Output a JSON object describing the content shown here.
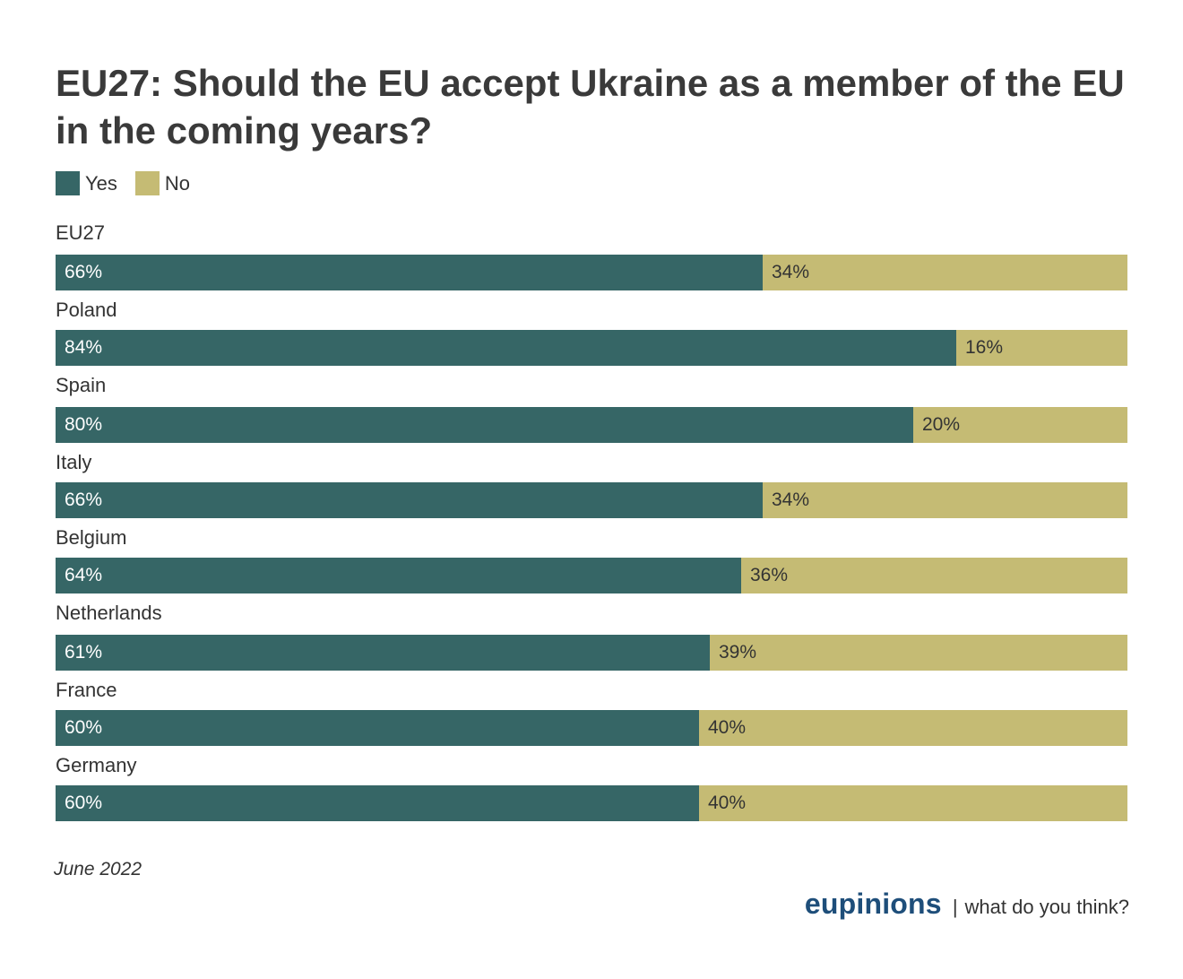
{
  "title": "EU27: Should the EU accept Ukraine as a member of the EU in the coming years?",
  "legend": [
    {
      "label": "Yes",
      "color": "#366666"
    },
    {
      "label": "No",
      "color": "#c5bb74"
    }
  ],
  "colors": {
    "yes": "#366666",
    "no": "#c5bb74"
  },
  "footnote": "June 2022",
  "brand": {
    "name": "eupinions",
    "separator": "|",
    "tagline": "what do you think?"
  },
  "chart_data": {
    "type": "bar",
    "orientation": "horizontal",
    "stacked": true,
    "title": "EU27: Should the EU accept Ukraine as a member of the EU in the coming years?",
    "categories": [
      "EU27",
      "Poland",
      "Spain",
      "Italy",
      "Belgium",
      "Netherlands",
      "France",
      "Germany"
    ],
    "series": [
      {
        "name": "Yes",
        "values": [
          66,
          84,
          80,
          66,
          64,
          61,
          60,
          60
        ],
        "labels": [
          "66%",
          "84%",
          "80%",
          "66%",
          "64%",
          "61%",
          "60%",
          "60%"
        ]
      },
      {
        "name": "No",
        "values": [
          34,
          16,
          20,
          34,
          36,
          39,
          40,
          40
        ],
        "labels": [
          "34%",
          "16%",
          "20%",
          "34%",
          "36%",
          "39%",
          "40%",
          "40%"
        ]
      }
    ],
    "xlim": [
      0,
      100
    ],
    "legend": "top-left",
    "grid": false
  }
}
